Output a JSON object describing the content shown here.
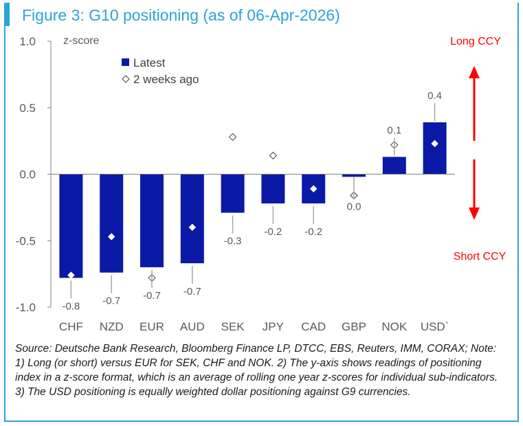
{
  "title": "Figure 3: G10 positioning (as of 06-Apr-2026)",
  "source_note": "Source: Deutsche Bank Research, Bloomberg Finance LP, DTCC, EBS, Reuters, IMM, CORAX; Note: 1) Long (or short) versus EUR for SEK, CHF and NOK. 2) The y-axis shows readings of positioning index in a z-score format, which is an average of rolling one year z-scores for individual sub-indicators. 3) The USD positioning is equally weighted dollar positioning against G9 currencies.",
  "colors": {
    "bar": "#0a1aa6",
    "title": "#2aa3dc",
    "arrow": "#ff0000"
  },
  "chart_data": {
    "type": "bar",
    "ylabel": "z-score",
    "ylim": [
      -1.0,
      1.0
    ],
    "yticks": [
      "1.0",
      "0.5",
      "0.0",
      "-0.5",
      "-1.0"
    ],
    "categories": [
      "CHF",
      "NZD",
      "EUR",
      "AUD",
      "SEK",
      "JPY",
      "CAD",
      "GBP",
      "NOK",
      "USD`"
    ],
    "series": [
      {
        "name": "Latest",
        "marker": "bar",
        "values": [
          -0.78,
          -0.74,
          -0.7,
          -0.67,
          -0.29,
          -0.22,
          -0.22,
          -0.02,
          0.13,
          0.39
        ]
      },
      {
        "name": "2 weeks ago",
        "marker": "diamond",
        "values": [
          -0.76,
          -0.47,
          -0.78,
          -0.4,
          0.28,
          0.14,
          -0.11,
          -0.16,
          0.22,
          0.23
        ]
      }
    ],
    "data_labels": [
      "-0.8",
      "-0.7",
      "-0.7",
      "-0.7",
      "-0.3",
      "-0.2",
      "-0.2",
      "0.0",
      "0.1",
      "0.4"
    ],
    "legend_position": "top-left",
    "annotations": {
      "long": "Long CCY",
      "short": "Short CCY"
    }
  }
}
